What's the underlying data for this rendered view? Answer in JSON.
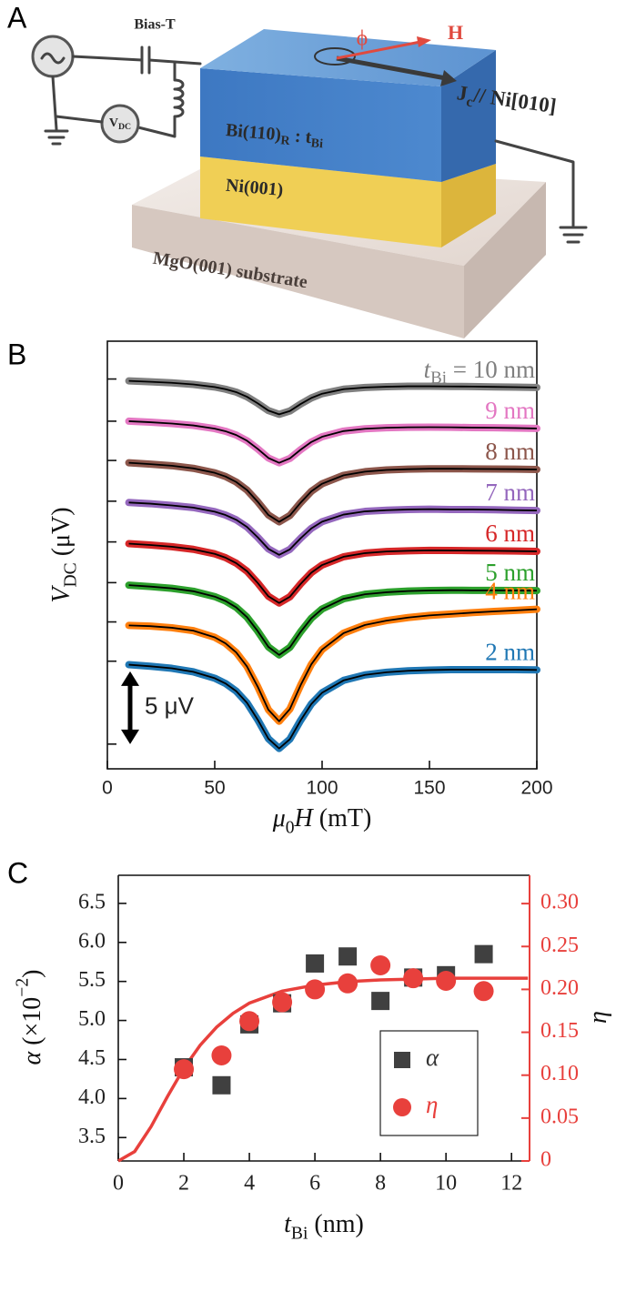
{
  "panel_labels": [
    "A",
    "B",
    "C"
  ],
  "diagram": {
    "labels": {
      "bias_t": "Bias-T",
      "vdc": [
        {
          "text": "V"
        },
        {
          "text": "DC",
          "sub": true
        }
      ],
      "phi": "ϕ",
      "h": "H",
      "jc": [
        {
          "text": "J"
        },
        {
          "text": "c",
          "sub": true
        },
        {
          "text": "// Ni[010]"
        }
      ],
      "bi": [
        {
          "text": "Bi(110)"
        },
        {
          "text": "R",
          "sub": true
        },
        {
          "text": " : t"
        },
        {
          "text": "Bi",
          "sub": true
        }
      ],
      "ni": "Ni(001)",
      "mgo": "MgO(001) substrate"
    }
  },
  "chart_data": [
    {
      "type": "line",
      "xlabel": [
        {
          "text": "μ",
          "italic": true
        },
        {
          "text": "0",
          "sub": true
        },
        {
          "text": "H",
          "italic": true
        },
        {
          "text": " (mT)"
        }
      ],
      "ylabel": [
        {
          "text": "V",
          "italic": true
        },
        {
          "text": "DC",
          "sub": true
        },
        {
          "text": " (μV)"
        }
      ],
      "x": [
        10,
        20,
        30,
        40,
        50,
        55,
        60,
        65,
        70,
        75,
        80,
        85,
        90,
        95,
        100,
        110,
        120,
        130,
        140,
        150,
        160,
        170,
        180,
        190,
        200
      ],
      "xlim": [
        0,
        200
      ],
      "xticks": [
        0,
        50,
        100,
        150,
        200
      ],
      "ylim": [
        0,
        29.4
      ],
      "yticks": [
        1.7,
        7.4,
        10.1,
        12.8,
        15.6,
        18.4,
        21.2,
        23.9,
        26.8
      ],
      "series_label_prefix": [
        {
          "text": "t",
          "italic": true
        },
        {
          "text": "Bi",
          "sub": true
        },
        {
          "text": " = "
        }
      ],
      "scale_bar": {
        "value": 5,
        "label": "5 μV"
      },
      "fit_color": "#000000",
      "series": [
        {
          "name": "10 nm",
          "color": "#7f7f7f",
          "values": [
            26.67,
            26.61,
            26.54,
            26.43,
            26.25,
            26.1,
            25.9,
            25.58,
            25.13,
            24.63,
            24.37,
            24.6,
            25.08,
            25.5,
            25.79,
            26.1,
            26.22,
            26.27,
            26.3,
            26.3,
            26.29,
            26.28,
            26.26,
            26.24,
            26.22
          ]
        },
        {
          "name": "9 nm",
          "color": "#e377c2",
          "values": [
            23.9,
            23.83,
            23.74,
            23.61,
            23.39,
            23.21,
            22.95,
            22.56,
            22.0,
            21.37,
            21.04,
            21.34,
            21.94,
            22.47,
            22.83,
            23.22,
            23.38,
            23.45,
            23.48,
            23.49,
            23.48,
            23.46,
            23.45,
            23.43,
            23.4
          ]
        },
        {
          "name": "8 nm",
          "color": "#8c564b",
          "values": [
            21.04,
            20.95,
            20.84,
            20.66,
            20.35,
            20.1,
            19.72,
            19.17,
            18.36,
            17.45,
            16.98,
            17.42,
            18.3,
            19.08,
            19.6,
            20.18,
            20.43,
            20.55,
            20.6,
            20.63,
            20.63,
            20.62,
            20.61,
            20.6,
            20.58
          ]
        },
        {
          "name": "7 nm",
          "color": "#9467bd",
          "values": [
            18.31,
            18.23,
            18.11,
            17.96,
            17.68,
            17.45,
            17.12,
            16.63,
            15.92,
            15.12,
            14.71,
            15.09,
            15.85,
            16.53,
            16.99,
            17.48,
            17.7,
            17.78,
            17.83,
            17.85,
            17.83,
            17.83,
            17.81,
            17.78,
            17.76
          ]
        },
        {
          "name": "6 nm",
          "color": "#d62728",
          "values": [
            15.48,
            15.39,
            15.27,
            15.09,
            14.78,
            14.52,
            14.14,
            13.59,
            12.78,
            11.86,
            11.4,
            11.83,
            12.71,
            13.49,
            14.01,
            14.58,
            14.83,
            14.94,
            14.99,
            15.02,
            15.01,
            15.0,
            14.99,
            14.97,
            14.95
          ]
        },
        {
          "name": "5 nm",
          "color": "#2ca02c",
          "values": [
            12.63,
            12.53,
            12.41,
            12.21,
            11.84,
            11.54,
            11.1,
            10.43,
            9.47,
            8.38,
            7.83,
            8.35,
            9.42,
            10.35,
            10.99,
            11.69,
            12.0,
            12.14,
            12.22,
            12.26,
            12.28,
            12.27,
            12.27,
            12.26,
            12.25
          ]
        },
        {
          "name": "4 nm",
          "color": "#ff7f0e",
          "values": [
            9.86,
            9.81,
            9.7,
            9.5,
            9.04,
            8.63,
            8.0,
            7.04,
            5.65,
            4.06,
            3.27,
            4.11,
            5.75,
            7.19,
            8.2,
            9.33,
            9.89,
            10.19,
            10.4,
            10.55,
            10.64,
            10.74,
            10.82,
            10.89,
            10.97
          ]
        },
        {
          "name": "2 nm",
          "color": "#1f77b4",
          "values": [
            7.16,
            7.05,
            6.91,
            6.67,
            6.23,
            5.87,
            5.34,
            4.54,
            3.38,
            2.07,
            1.4,
            2.04,
            3.33,
            4.46,
            5.23,
            6.08,
            6.46,
            6.64,
            6.74,
            6.79,
            6.82,
            6.82,
            6.82,
            6.82,
            6.8
          ]
        }
      ]
    },
    {
      "type": "scatter",
      "xlabel": [
        {
          "text": "t",
          "italic": true
        },
        {
          "text": "Bi",
          "sub": true
        },
        {
          "text": " (nm)"
        }
      ],
      "ylabel": [
        {
          "text": "α",
          "italic": true
        },
        {
          "text": " (×10"
        },
        {
          "text": "−2",
          "sup": true
        },
        {
          "text": ")"
        }
      ],
      "y2label": [
        {
          "text": "η",
          "italic": true
        }
      ],
      "xlim": [
        0,
        12.55
      ],
      "xticks": [
        0,
        2,
        4,
        6,
        8,
        10,
        12
      ],
      "ylim": [
        3.2,
        6.86
      ],
      "yticks": [
        3.5,
        {
          "value": 4,
          "label": "4.0"
        },
        4.5,
        {
          "value": 5,
          "label": "5.0"
        },
        5.5,
        {
          "value": 6,
          "label": "6.0"
        },
        6.5
      ],
      "y2lim": [
        0,
        0.333
      ],
      "y2ticks": [
        0,
        0.05,
        {
          "value": 0.1,
          "label": "0.10"
        },
        0.15,
        {
          "value": 0.2,
          "label": "0.20"
        },
        0.25,
        {
          "value": 0.3,
          "label": "0.30"
        }
      ],
      "y2color": "#e8403c",
      "legend": "lower right",
      "series": [
        {
          "name": "α",
          "color": "#404040",
          "marker": "square",
          "x": [
            2,
            3.15,
            4,
            5,
            6,
            7,
            8,
            9,
            10,
            11.15
          ],
          "values": [
            4.4,
            4.17,
            4.95,
            5.22,
            5.73,
            5.82,
            5.25,
            5.55,
            5.58,
            5.85
          ]
        },
        {
          "name": "η",
          "color": "#e8403c",
          "marker": "circle",
          "axis": "y2",
          "x": [
            2,
            3.15,
            4,
            5,
            6,
            7,
            8,
            9,
            10,
            11.15
          ],
          "values": [
            0.107,
            0.123,
            0.163,
            0.185,
            0.2,
            0.207,
            0.228,
            0.213,
            0.21,
            0.198
          ]
        }
      ],
      "fit": {
        "color": "#e8403c",
        "axis": "y2",
        "x": [
          0,
          0.5,
          1,
          1.5,
          2,
          2.5,
          3,
          3.5,
          4,
          5,
          6,
          7,
          8,
          9,
          10,
          11,
          12,
          12.5
        ],
        "values": [
          0,
          0.011,
          0.04,
          0.075,
          0.108,
          0.135,
          0.156,
          0.172,
          0.184,
          0.198,
          0.205,
          0.209,
          0.211,
          0.212,
          0.213,
          0.213,
          0.213,
          0.213
        ]
      }
    }
  ]
}
